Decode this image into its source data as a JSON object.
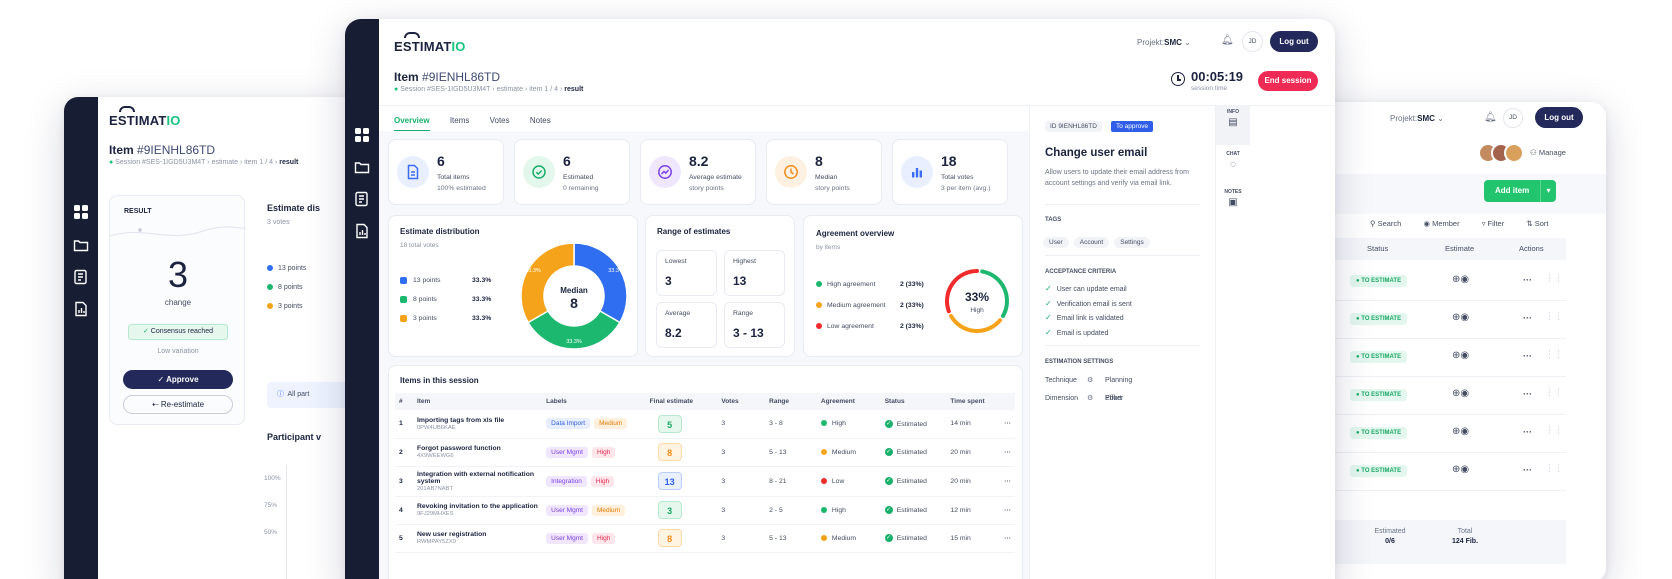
{
  "brand": {
    "name_main": "ESTIMAT",
    "name_accent": "IO"
  },
  "left": {
    "item_prefix": "Item ",
    "item_id": "#9IENHL86TD",
    "breadcrumb": [
      "Session #SES-1IGD5U3M4T",
      "estimate",
      "item 1 / 4",
      "result"
    ],
    "result_label": "RESULT",
    "result_value": "3",
    "result_caption": "change",
    "consensus": "Consensus reached",
    "variation": "Low variation",
    "approve": "Approve",
    "reestimate": "Re-estimate",
    "dist_title": "Estimate dis",
    "dist_votes": "3 votes",
    "legend": [
      "13 points",
      "8 points",
      "3 points"
    ],
    "info_text": "All part",
    "participant_title": "Participant v",
    "yticks": [
      "100%",
      "75%",
      "50%"
    ]
  },
  "right": {
    "project_label": "Projekt:",
    "project_value": "SMC",
    "user_initials": "JD",
    "logout": "Log out",
    "manage": "Manage",
    "add_item": "Add item",
    "search": "Search",
    "member": "Member",
    "filter": "Filter",
    "sort": "Sort",
    "cols": [
      "Status",
      "Estimate",
      "Actions"
    ],
    "row_status": "TO ESTIMATE",
    "rows": 6,
    "footer": {
      "est_label": "Estimated",
      "est_value": "0/6",
      "total_label": "Total",
      "total_value": "124 Fib."
    }
  },
  "main": {
    "project_label": "Projekt:",
    "project_value": "SMC",
    "user_initials": "JD",
    "logout": "Log out",
    "item_prefix": "Item ",
    "item_id": "#9IENHL86TD",
    "breadcrumb": [
      "Session #SES-1IGD5U3M4T",
      "estimate",
      "item 1 / 4",
      "result"
    ],
    "timer": "00:05:19",
    "timer_caption": "session time",
    "end_session": "End session",
    "tabs": [
      "Overview",
      "Items",
      "Votes",
      "Notes"
    ],
    "stats": [
      {
        "value": "6",
        "label": "Total items",
        "sub": "100% estimated",
        "icon": "document-icon",
        "color": "#3b6cf5",
        "bg": "#e9efff"
      },
      {
        "value": "6",
        "label": "Estimated",
        "sub": "0 remaining",
        "icon": "check-circle-icon",
        "color": "#19b06a",
        "bg": "#e3f7ed"
      },
      {
        "value": "8.2",
        "label": "Average estimate",
        "sub": "story points",
        "icon": "trend-icon",
        "color": "#7b3fe4",
        "bg": "#efe7fd"
      },
      {
        "value": "8",
        "label": "Median",
        "sub": "story points",
        "icon": "clock-icon",
        "color": "#f08c1c",
        "bg": "#fff1e1"
      },
      {
        "value": "18",
        "label": "Total votes",
        "sub": "3 per item (avg.)",
        "icon": "bar-chart-icon",
        "color": "#3b6cf5",
        "bg": "#e9efff"
      }
    ],
    "distribution": {
      "title": "Estimate distribution",
      "sub": "18 total votes",
      "rows": [
        {
          "label": "13 points",
          "pct": "33.3%",
          "color": "#2f6ef0"
        },
        {
          "label": "8 points",
          "pct": "33.3%",
          "color": "#1db870"
        },
        {
          "label": "3 points",
          "pct": "33.3%",
          "color": "#f5a31a"
        }
      ],
      "center_label": "Median",
      "center_value": "8",
      "slice_labels": [
        "33.3%",
        "33.3%",
        "33.3%"
      ]
    },
    "range": {
      "title": "Range of estimates",
      "cells": [
        {
          "label": "Lowest",
          "value": "3"
        },
        {
          "label": "Highest",
          "value": "13"
        },
        {
          "label": "Average",
          "value": "8.2"
        },
        {
          "label": "Range",
          "value": "3 - 13"
        }
      ]
    },
    "agreement": {
      "title": "Agreement overview",
      "sub": "by items",
      "rows": [
        {
          "label": "High agreement",
          "value": "2 (33%)",
          "color": "#1db870"
        },
        {
          "label": "Medium agreement",
          "value": "2 (33%)",
          "color": "#f5a31a"
        },
        {
          "label": "Low agreement",
          "value": "2 (33%)",
          "color": "#ef2b2b"
        }
      ],
      "gauge_value": "33%",
      "gauge_label": "High"
    },
    "items_title": "Items in this session",
    "columns": [
      "#",
      "Item",
      "Labels",
      "Final estimate",
      "Votes",
      "Range",
      "Agreement",
      "Status",
      "Time spent"
    ],
    "rows": [
      {
        "n": "1",
        "title": "Importing tags from xls file",
        "code": "0PW4UB6KAE",
        "labels": [
          {
            "t": "Data Import",
            "k": "blue"
          },
          {
            "t": "Medium",
            "k": "orange"
          }
        ],
        "est": "5",
        "estk": "green",
        "votes": "3",
        "range": "3 - 8",
        "agree": "High",
        "agreek": "green",
        "status": "Estimated",
        "time": "14 min"
      },
      {
        "n": "2",
        "title": "Forgot password function",
        "code": "4X9WEEWG6",
        "labels": [
          {
            "t": "User Mgmt",
            "k": "purple"
          },
          {
            "t": "High",
            "k": "red"
          }
        ],
        "est": "8",
        "estk": "orange",
        "votes": "3",
        "range": "5 - 13",
        "agree": "Medium",
        "agreek": "orange",
        "status": "Estimated",
        "time": "20 min"
      },
      {
        "n": "3",
        "title": "Integration with external notification system",
        "code": "201AB7NABT",
        "labels": [
          {
            "t": "Integration",
            "k": "purple"
          },
          {
            "t": "High",
            "k": "red"
          }
        ],
        "est": "13",
        "estk": "blue",
        "votes": "3",
        "range": "8 - 21",
        "agree": "Low",
        "agreek": "red",
        "status": "Estimated",
        "time": "20 min"
      },
      {
        "n": "4",
        "title": "Revoking invitation to the application",
        "code": "9FJ29MHXES",
        "labels": [
          {
            "t": "User Mgmt",
            "k": "purple"
          },
          {
            "t": "Medium",
            "k": "orange"
          }
        ],
        "est": "3",
        "estk": "green",
        "votes": "3",
        "range": "2 - 5",
        "agree": "High",
        "agreek": "green",
        "status": "Estimated",
        "time": "12 min"
      },
      {
        "n": "5",
        "title": "New user registration",
        "code": "RWMPAY5ZX9",
        "labels": [
          {
            "t": "User Mgmt",
            "k": "purple"
          },
          {
            "t": "High",
            "k": "red"
          }
        ],
        "est": "8",
        "estk": "orange",
        "votes": "3",
        "range": "5 - 13",
        "agree": "Medium",
        "agreek": "orange",
        "status": "Estimated",
        "time": "15 min"
      }
    ],
    "detail": {
      "id_label": "ID",
      "id_value": "9IENHL86TD",
      "badge": "To approve",
      "title": "Change user email",
      "desc": "Allow users to update their email address from account settings and verify via email link.",
      "tags_title": "TAGS",
      "tags": [
        "User",
        "Account",
        "Settings"
      ],
      "criteria_title": "ACCEPTANCE CRITERIA",
      "criteria": [
        "User can update email",
        "Verification email is sent",
        "Email link is validated",
        "Email is updated"
      ],
      "settings_title": "ESTIMATION SETTINGS",
      "settings": [
        {
          "label": "Technique",
          "value": "Planning Poker"
        },
        {
          "label": "Dimension",
          "value": "Effort"
        }
      ]
    },
    "side_tabs": [
      "INFO",
      "CHAT",
      "NOTES"
    ]
  }
}
